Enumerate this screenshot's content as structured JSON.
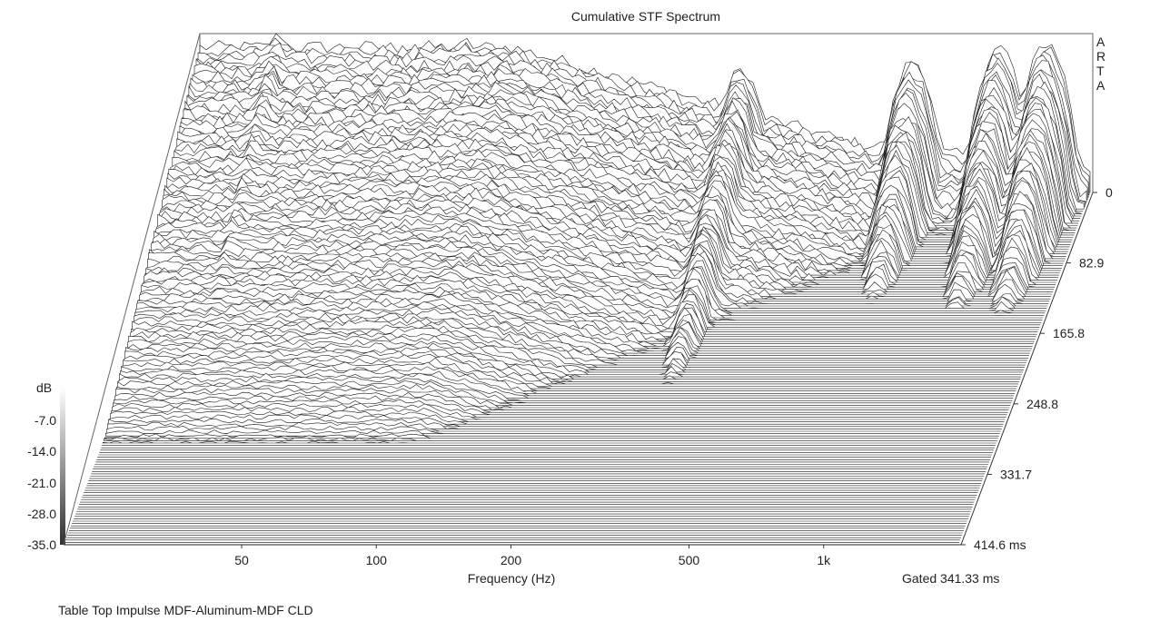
{
  "chart_data": {
    "type": "waterfall",
    "title": "Cumulative STF Spectrum",
    "brand": [
      "A",
      "R",
      "T",
      "A"
    ],
    "xlabel": "Frequency (Hz)",
    "x_scale": "log",
    "x_range_hz": [
      20,
      2000
    ],
    "x_ticks": [
      {
        "value": 50,
        "label": "50"
      },
      {
        "value": 100,
        "label": "100"
      },
      {
        "value": 200,
        "label": "200"
      },
      {
        "value": 500,
        "label": "500"
      },
      {
        "value": 1000,
        "label": "1k"
      }
    ],
    "time_axis": {
      "unit": "ms",
      "range": [
        0,
        414.6
      ],
      "ticks": [
        {
          "value": 0,
          "label": "0"
        },
        {
          "value": 82.9,
          "label": "82.9"
        },
        {
          "value": 165.8,
          "label": "165.8"
        },
        {
          "value": 248.8,
          "label": "248.8"
        },
        {
          "value": 331.7,
          "label": "331.7"
        },
        {
          "value": 414.6,
          "label": "414.6 ms"
        }
      ]
    },
    "db_axis": {
      "label": "dB",
      "range": [
        -35,
        0
      ],
      "ticks": [
        "-7.0",
        "-14.0",
        "-21.0",
        "-28.0",
        "-35.0"
      ]
    },
    "gating_note": "Gated 341.33 ms",
    "footer": "Table Top Impulse MDF-Aluminum-MDF CLD",
    "slice_count": 150,
    "resonances_hz_db": [
      {
        "freq": 30,
        "db": 0
      },
      {
        "freq": 80,
        "db": -2
      },
      {
        "freq": 330,
        "db": -8
      },
      {
        "freq": 800,
        "db": -6
      },
      {
        "freq": 1250,
        "db": -3
      },
      {
        "freq": 1600,
        "db": -2
      }
    ]
  }
}
